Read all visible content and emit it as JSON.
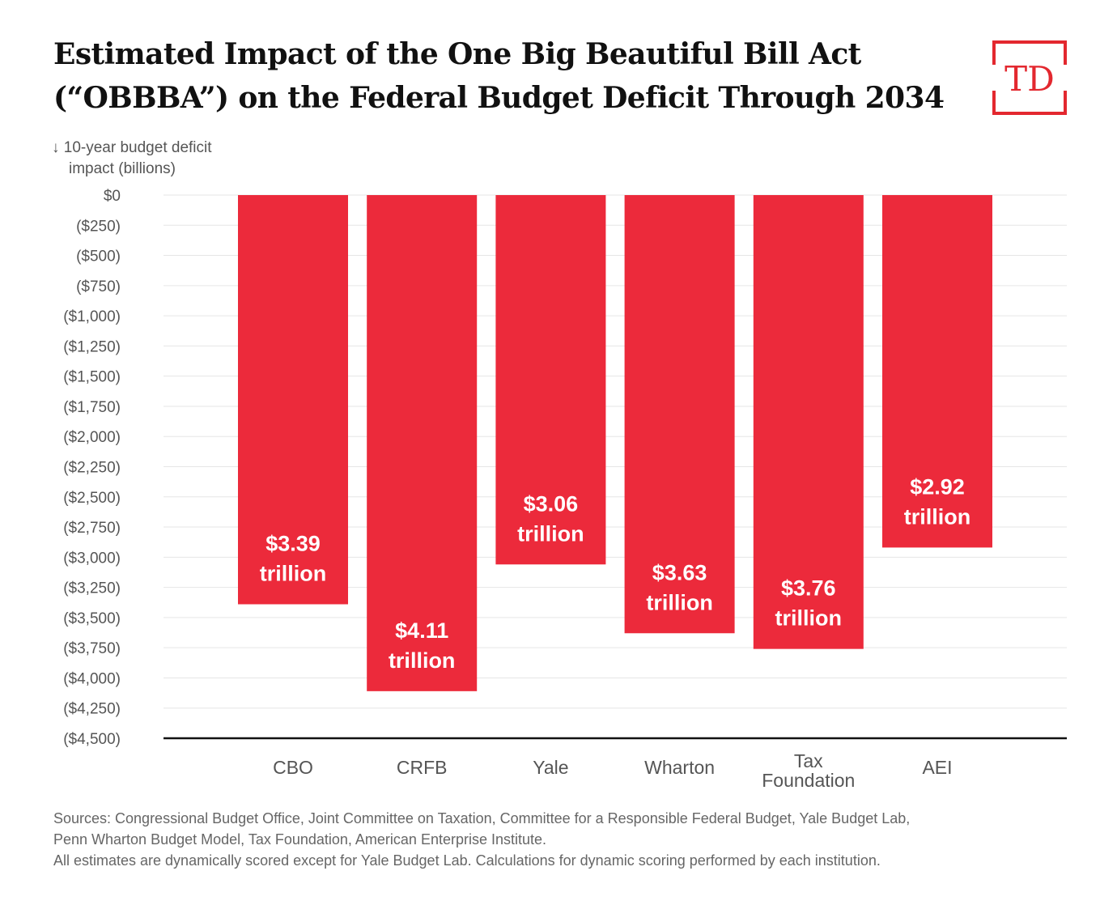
{
  "header": {
    "title_line1": "Estimated Impact of the One Big Beautiful Bill Act",
    "title_line2": "(“OBBBA”) on the Federal Budget Deficit Through 2034",
    "logo_text": "TD"
  },
  "axis_caption": {
    "line1": "↓ 10-year budget deficit",
    "line2": "impact (billions)"
  },
  "footer": {
    "line1": "Sources: Congressional Budget Office, Joint Committee on Taxation, Committee for a Responsible Federal Budget, Yale Budget Lab,",
    "line2": "Penn Wharton Budget Model, Tax Foundation, American Enterprise Institute.",
    "line3": "All estimates are dynamically scored except for Yale Budget Lab. Calculations for dynamic scoring performed by each institution."
  },
  "colors": {
    "bar": "#ec2a3b",
    "brand": "#e3282f",
    "grid": "#e6e6e6",
    "axis": "#111111",
    "tick_text": "#555555",
    "category_text": "#555555",
    "label_text": "#ffffff"
  },
  "chart_data": {
    "type": "bar",
    "title": "Estimated Impact of the One Big Beautiful Bill Act (“OBBBA”) on the Federal Budget Deficit Through 2034",
    "xlabel": "",
    "ylabel": "↓ 10-year budget deficit impact (billions)",
    "categories": [
      "CBO",
      "CRFB",
      "Yale",
      "Wharton",
      "Tax Foundation",
      "AEI"
    ],
    "category_lines": [
      [
        "CBO"
      ],
      [
        "CRFB"
      ],
      [
        "Yale"
      ],
      [
        "Wharton"
      ],
      [
        "Tax",
        "Foundation"
      ],
      [
        "AEI"
      ]
    ],
    "values": [
      -3390,
      -4110,
      -3060,
      -3630,
      -3760,
      -2920
    ],
    "data_labels": [
      [
        "$3.39",
        "trillion"
      ],
      [
        "$4.11",
        "trillion"
      ],
      [
        "$3.06",
        "trillion"
      ],
      [
        "$3.63",
        "trillion"
      ],
      [
        "$3.76",
        "trillion"
      ],
      [
        "$2.92",
        "trillion"
      ]
    ],
    "ylim": [
      -4500,
      0
    ],
    "yticks": [
      0,
      -250,
      -500,
      -750,
      -1000,
      -1250,
      -1500,
      -1750,
      -2000,
      -2250,
      -2500,
      -2750,
      -3000,
      -3250,
      -3500,
      -3750,
      -4000,
      -4250,
      -4500
    ],
    "ytick_labels": [
      "$0",
      "($250)",
      "($500)",
      "($750)",
      "($1,000)",
      "($1,250)",
      "($1,500)",
      "($1,750)",
      "($2,000)",
      "($2,250)",
      "($2,500)",
      "($2,750)",
      "($3,000)",
      "($3,250)",
      "($3,500)",
      "($3,750)",
      "($4,000)",
      "($4,250)",
      "($4,500)"
    ],
    "grid": true,
    "legend": "none"
  }
}
